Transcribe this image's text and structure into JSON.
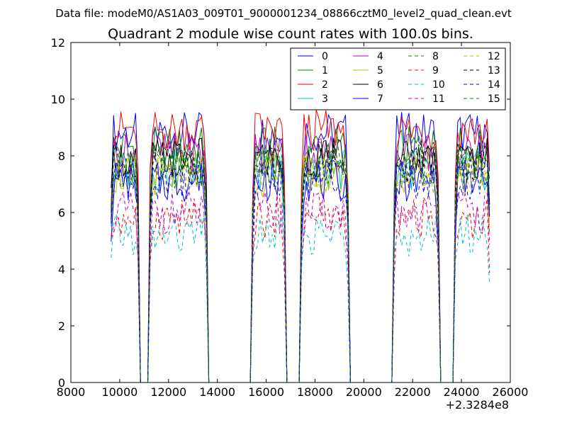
{
  "chart_data": {
    "type": "line",
    "suptitle": "Data file: modeM0/AS1A03_009T01_9000001234_08866cztM0_level2_quad_clean.evt",
    "title": "Quadrant 2 module wise count rates with 100.0s bins.",
    "xlabel": "",
    "ylabel": "",
    "x_offset_label": "+2.3284e8",
    "xlim": [
      8000,
      26000
    ],
    "ylim": [
      0,
      12
    ],
    "xticks": [
      8000,
      10000,
      12000,
      14000,
      16000,
      18000,
      20000,
      22000,
      24000,
      26000
    ],
    "xtick_labels": [
      "8000",
      "10000",
      "12000",
      "14000",
      "16000",
      "18000",
      "20000",
      "22000",
      "24000",
      "26000"
    ],
    "yticks": [
      0,
      2,
      4,
      6,
      8,
      10,
      12
    ],
    "ytick_labels": [
      "0",
      "2",
      "4",
      "6",
      "8",
      "10",
      "12"
    ],
    "legend_position": "top-right",
    "x_start": 9650,
    "bin_seconds": 100,
    "segments": [
      [
        9650,
        10750
      ],
      [
        11250,
        13550
      ],
      [
        15450,
        16750
      ],
      [
        17450,
        19350
      ],
      [
        21250,
        23050
      ],
      [
        23750,
        25150
      ]
    ],
    "series": [
      {
        "name": "0",
        "color": "#0000ff",
        "style": "solid",
        "level": 8.8
      },
      {
        "name": "1",
        "color": "#008000",
        "style": "solid",
        "level": 8.3
      },
      {
        "name": "2",
        "color": "#ff0000",
        "style": "solid",
        "level": 8.9
      },
      {
        "name": "3",
        "color": "#00bfbf",
        "style": "solid",
        "level": 7.5
      },
      {
        "name": "4",
        "color": "#bf00bf",
        "style": "solid",
        "level": 8.1
      },
      {
        "name": "5",
        "color": "#bfbf00",
        "style": "solid",
        "level": 7.3
      },
      {
        "name": "6",
        "color": "#000000",
        "style": "solid",
        "level": 7.9
      },
      {
        "name": "7",
        "color": "#0000ff",
        "style": "solid",
        "level": 7.1
      },
      {
        "name": "8",
        "color": "#008000",
        "style": "dashed",
        "level": 7.6
      },
      {
        "name": "9",
        "color": "#ff0000",
        "style": "dashed",
        "level": 5.8
      },
      {
        "name": "10",
        "color": "#00bfbf",
        "style": "dashed",
        "level": 5.2
      },
      {
        "name": "11",
        "color": "#bf00bf",
        "style": "dashed",
        "level": 6.0
      },
      {
        "name": "12",
        "color": "#bfbf00",
        "style": "dashed",
        "level": 7.4
      },
      {
        "name": "13",
        "color": "#000000",
        "style": "dashed",
        "level": 7.8
      },
      {
        "name": "14",
        "color": "#0000ff",
        "style": "dashed",
        "level": 7.2
      },
      {
        "name": "15",
        "color": "#008000",
        "style": "dashed",
        "level": 7.7
      }
    ]
  }
}
